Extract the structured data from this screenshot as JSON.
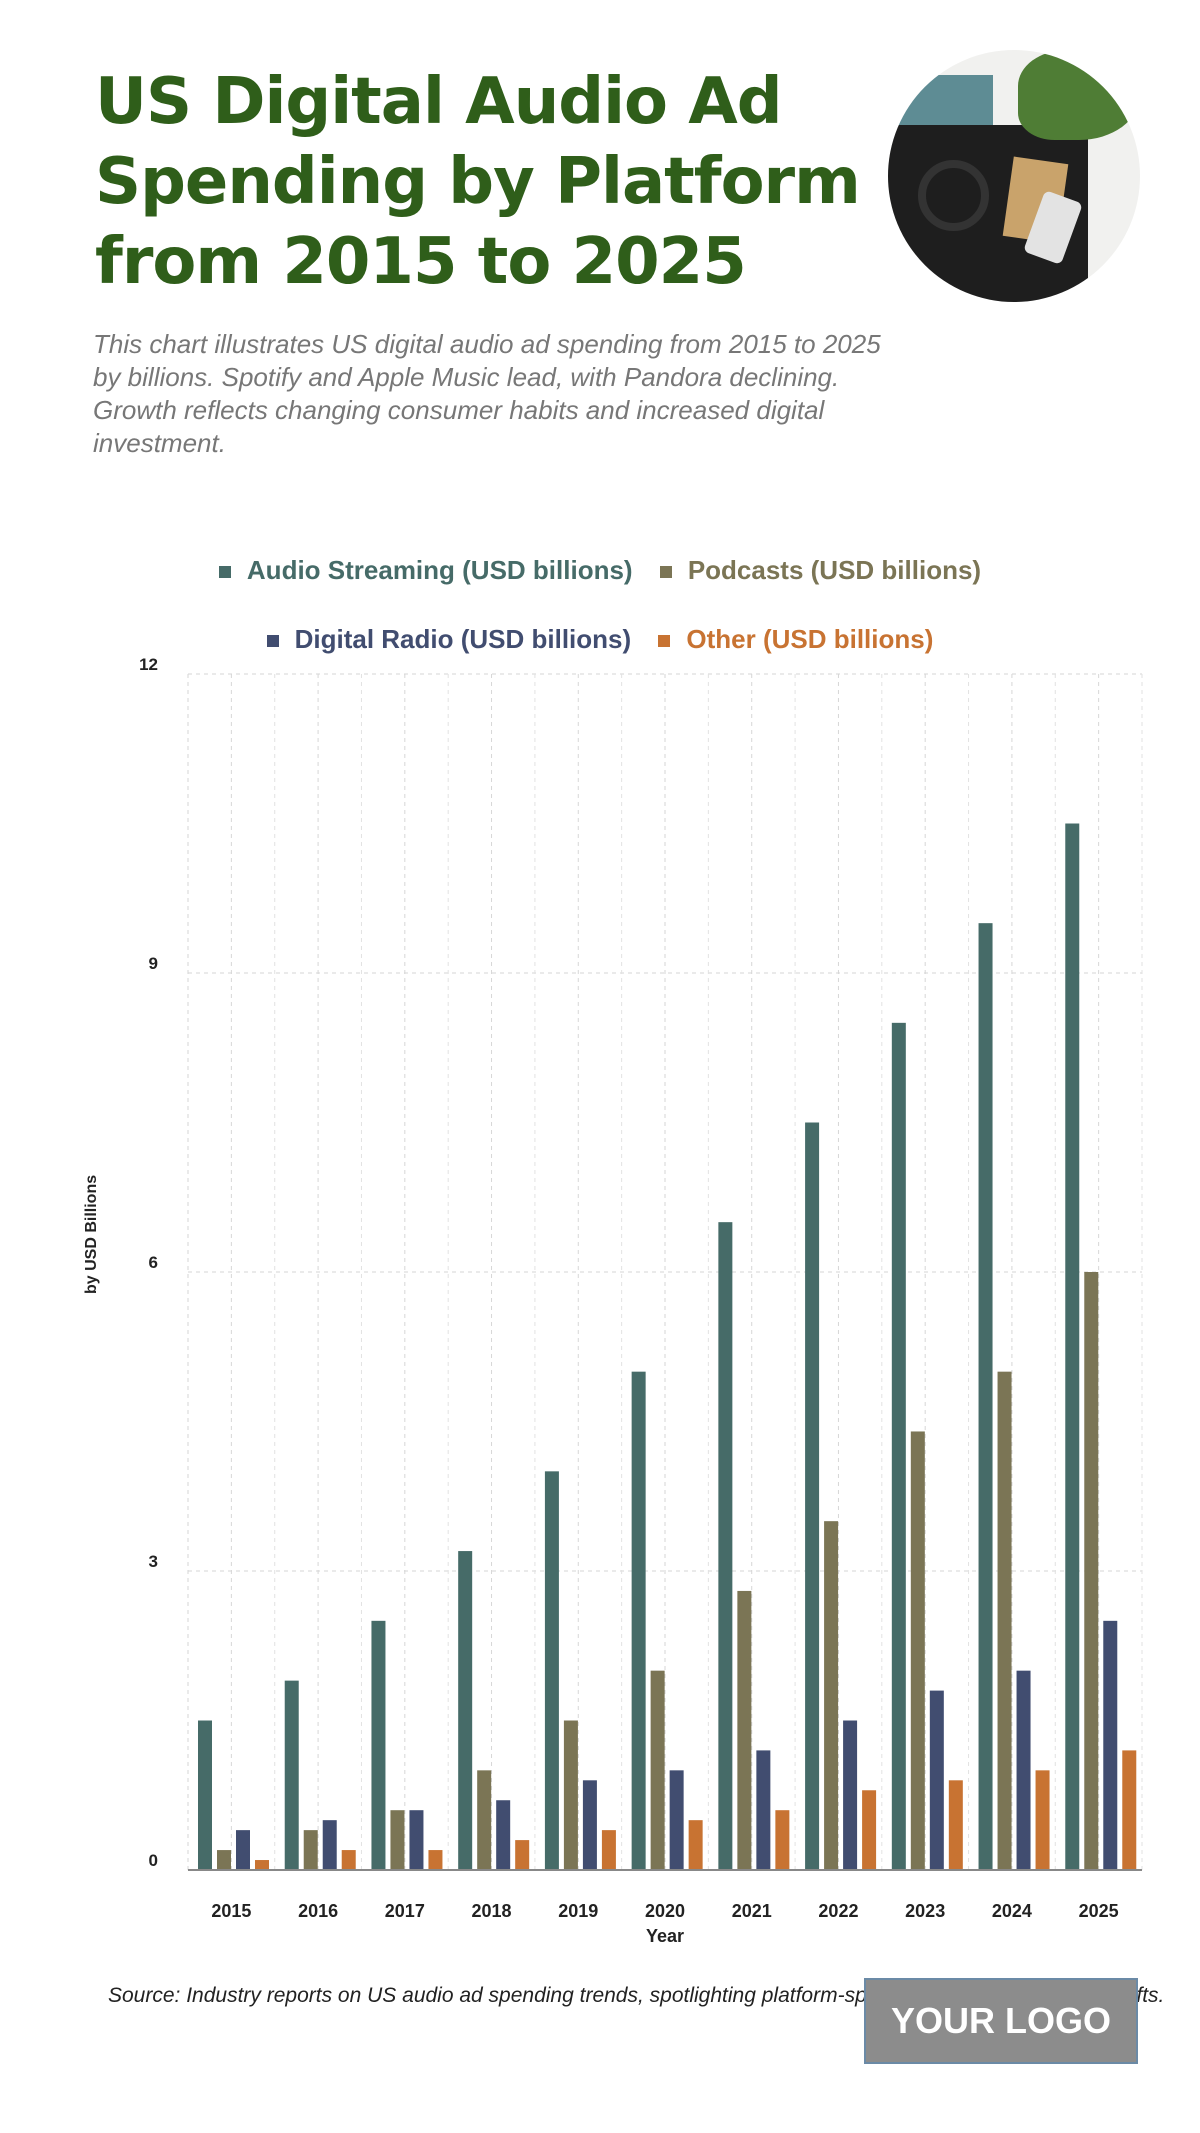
{
  "header": {
    "title": "US Digital Audio Ad Spending by Platform from 2015 to 2025",
    "subtitle": "This chart illustrates US digital audio ad spending from 2015 to 2025 by billions. Spotify and Apple Music lead, with Pandora declining. Growth reflects changing consumer habits and increased digital investment."
  },
  "chart_data": {
    "type": "bar",
    "xlabel": "Year",
    "ylabel": "by USD Billions",
    "ylim": [
      0,
      12
    ],
    "yticks": [
      "0",
      "3",
      "6",
      "9",
      "12"
    ],
    "grid": true,
    "legend": "top",
    "categories": [
      "2015",
      "2016",
      "2017",
      "2018",
      "2019",
      "2020",
      "2021",
      "2022",
      "2023",
      "2024",
      "2025"
    ],
    "series": [
      {
        "name": "Audio Streaming (USD billions)",
        "color": "#466b68",
        "values": [
          1.5,
          1.9,
          2.5,
          3.2,
          4.0,
          5.0,
          6.5,
          7.5,
          8.5,
          9.5,
          10.5
        ]
      },
      {
        "name": "Podcasts (USD billions)",
        "color": "#7b7555",
        "values": [
          0.2,
          0.4,
          0.6,
          1.0,
          1.5,
          2.0,
          2.8,
          3.5,
          4.4,
          5.0,
          6.0
        ]
      },
      {
        "name": "Digital Radio (USD billions)",
        "color": "#414d70",
        "values": [
          0.4,
          0.5,
          0.6,
          0.7,
          0.9,
          1.0,
          1.2,
          1.5,
          1.8,
          2.0,
          2.5
        ]
      },
      {
        "name": "Other (USD billions)",
        "color": "#c87332",
        "values": [
          0.1,
          0.2,
          0.2,
          0.3,
          0.4,
          0.5,
          0.6,
          0.8,
          0.9,
          1.0,
          1.2
        ]
      }
    ]
  },
  "footer": {
    "source": "Source: Industry reports on US audio ad spending trends, spotlighting platform-specific growth and industry shifts.",
    "logo": "YOUR LOGO"
  }
}
